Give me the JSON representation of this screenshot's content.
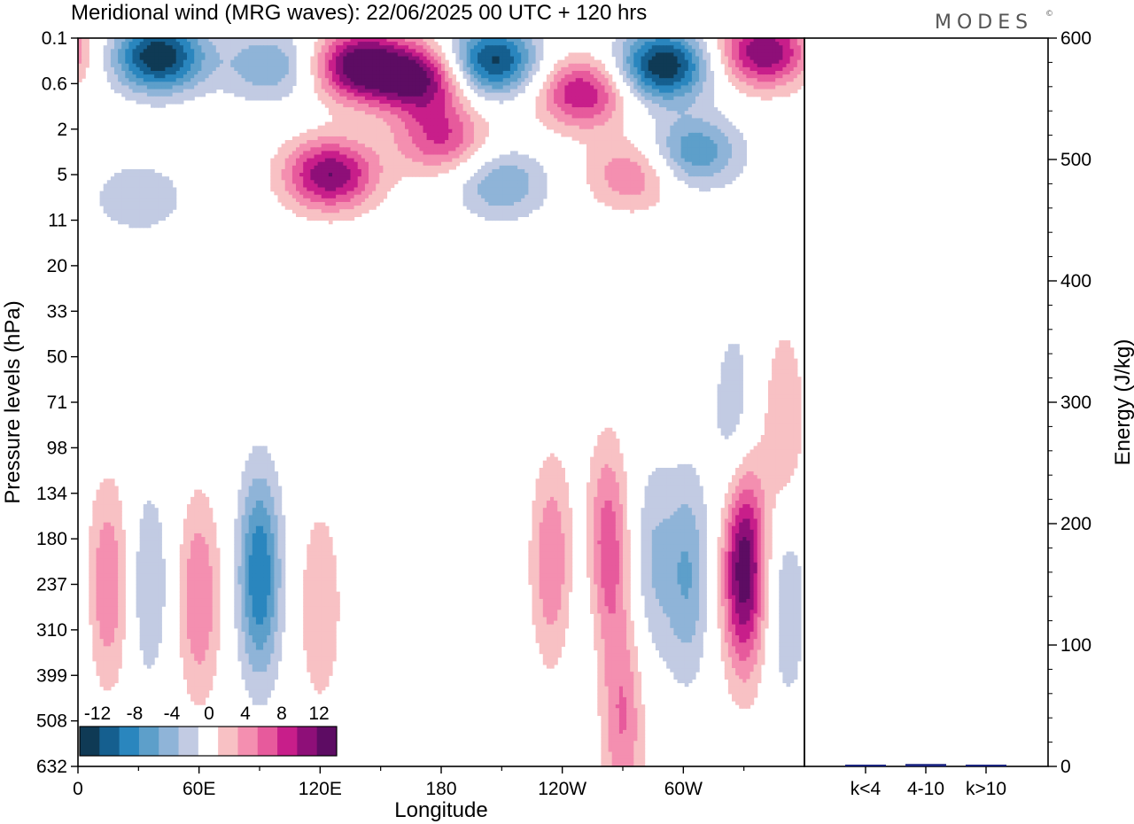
{
  "title": "Meridional wind (MRG waves):  22/06/2025  00 UTC  + 120 hrs",
  "logo": "MODES",
  "chart_data": [
    {
      "type": "heatmap",
      "title": "Meridional wind (MRG waves):  22/06/2025  00 UTC  + 120 hrs",
      "xlabel": "Longitude",
      "ylabel": "Pressure levels (hPa)",
      "x_ticks": [
        "0",
        "60E",
        "120E",
        "180",
        "120W",
        "60W"
      ],
      "x_tick_degrees": [
        0,
        60,
        120,
        180,
        240,
        300
      ],
      "xlim": [
        0,
        360
      ],
      "y_ticks": [
        "0.1",
        "0.6",
        "2",
        "5",
        "11",
        "20",
        "33",
        "50",
        "71",
        "98",
        "134",
        "180",
        "237",
        "310",
        "399",
        "508",
        "632"
      ],
      "y_axis": "categorical pressure levels, top to bottom",
      "colorbar": {
        "labels": [
          "-12",
          "-8",
          "-4",
          "0",
          "4",
          "8",
          "12"
        ],
        "levels": [
          -14,
          -12,
          -10,
          -8,
          -6,
          -4,
          -2,
          2,
          4,
          6,
          8,
          10,
          12,
          14
        ],
        "colors": [
          "#0f3a55",
          "#155f8f",
          "#2a86be",
          "#5d9fca",
          "#8fb4d8",
          "#c2cbe3",
          "#ffffff",
          "#f8c1c4",
          "#f48fb0",
          "#e75a9c",
          "#c81e8a",
          "#8e0f78",
          "#5d0c63"
        ]
      },
      "features": [
        {
          "lon": 40,
          "level": 0.4,
          "value": -14
        },
        {
          "lon": 95,
          "level": 0.6,
          "value": -6
        },
        {
          "lon": 140,
          "level": 0.6,
          "value": 14
        },
        {
          "lon": 170,
          "level": 0.9,
          "value": 12
        },
        {
          "lon": 205,
          "level": 0.5,
          "value": -13
        },
        {
          "lon": 250,
          "level": 1.2,
          "value": 10
        },
        {
          "lon": 290,
          "level": 0.6,
          "value": -14
        },
        {
          "lon": 305,
          "level": 2.5,
          "value": -8
        },
        {
          "lon": 340,
          "level": 0.3,
          "value": 12
        },
        {
          "lon": 125,
          "level": 3.0,
          "value": 12
        },
        {
          "lon": 180,
          "level": 2.2,
          "value": 8
        },
        {
          "lon": 210,
          "level": 3.2,
          "value": -6
        },
        {
          "lon": 275,
          "level": 3.0,
          "value": 6
        },
        {
          "lon": 30,
          "level": 3.5,
          "value": -4
        },
        {
          "lon": 15,
          "level": 12,
          "value": 6
        },
        {
          "lon": 35,
          "level": 12,
          "value": -4
        },
        {
          "lon": 60,
          "level": 12.3,
          "value": 6
        },
        {
          "lon": 90,
          "level": 11.8,
          "value": -10
        },
        {
          "lon": 120,
          "level": 12.5,
          "value": 4
        },
        {
          "lon": 185,
          "level": 11,
          "value": 2
        },
        {
          "lon": 235,
          "level": 11.5,
          "value": 6
        },
        {
          "lon": 252,
          "level": 12,
          "value": -2
        },
        {
          "lon": 262,
          "level": 11.2,
          "value": 8
        },
        {
          "lon": 270,
          "level": 15,
          "value": 6
        },
        {
          "lon": 285,
          "level": 11.5,
          "value": -4
        },
        {
          "lon": 302,
          "level": 11.8,
          "value": -6
        },
        {
          "lon": 330,
          "level": 11.6,
          "value": 14
        },
        {
          "lon": 352,
          "level": 12.4,
          "value": -4
        },
        {
          "lon": 350,
          "level": 8.5,
          "value": 4
        },
        {
          "lon": 325,
          "level": 8.5,
          "value": -4
        }
      ]
    },
    {
      "type": "bar",
      "ylabel": "Energy (J/kg)",
      "ylim": [
        0,
        600
      ],
      "y_ticks": [
        "0",
        "100",
        "200",
        "300",
        "400",
        "500",
        "600"
      ],
      "categories": [
        "k<4",
        "4-10",
        "k>10"
      ],
      "values": [
        0.5,
        2,
        0.3
      ],
      "colors": [
        "#1a237e",
        "#1a237e",
        "#1a237e"
      ]
    }
  ]
}
